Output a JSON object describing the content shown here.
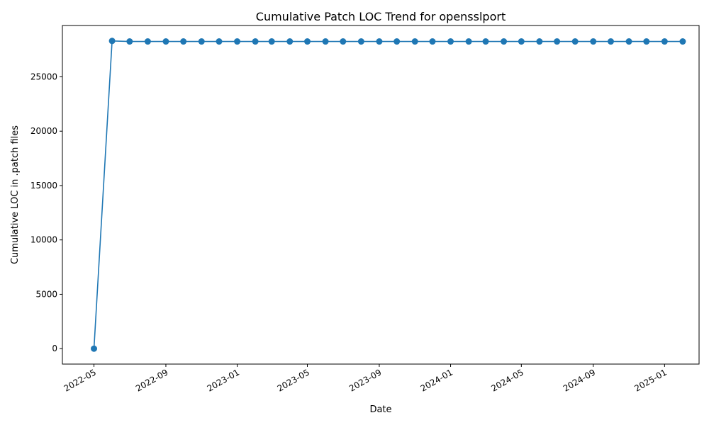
{
  "chart_data": {
    "type": "line",
    "title": "Cumulative Patch LOC Trend for opensslport",
    "xlabel": "Date",
    "ylabel": "Cumulative LOC in .patch files",
    "x": [
      "2022-05-01",
      "2022-06-01",
      "2022-07-01",
      "2022-08-01",
      "2022-09-01",
      "2022-10-01",
      "2022-11-01",
      "2022-12-01",
      "2023-01-01",
      "2023-02-01",
      "2023-03-01",
      "2023-04-01",
      "2023-05-01",
      "2023-06-01",
      "2023-07-01",
      "2023-08-01",
      "2023-09-01",
      "2023-10-01",
      "2023-11-01",
      "2023-12-01",
      "2024-01-01",
      "2024-02-01",
      "2024-03-01",
      "2024-04-01",
      "2024-05-01",
      "2024-06-01",
      "2024-07-01",
      "2024-08-01",
      "2024-09-01",
      "2024-10-01",
      "2024-11-01",
      "2024-12-01",
      "2025-01-01",
      "2025-02-01"
    ],
    "series": [
      {
        "name": "",
        "color": "#1f77b4",
        "values": [
          0,
          28300,
          28250,
          28250,
          28250,
          28250,
          28250,
          28250,
          28250,
          28250,
          28250,
          28250,
          28250,
          28250,
          28250,
          28250,
          28250,
          28250,
          28250,
          28250,
          28250,
          28250,
          28250,
          28250,
          28250,
          28250,
          28250,
          28250,
          28250,
          28250,
          28250,
          28250,
          28250,
          28250
        ]
      }
    ],
    "xlim": [
      "2022-03-08",
      "2025-03-01"
    ],
    "ylim": [
      -1420,
      29720
    ],
    "x_ticks": [
      "2022-05",
      "2022-09",
      "2023-01",
      "2023-05",
      "2023-09",
      "2024-01",
      "2024-05",
      "2024-09",
      "2025-01"
    ],
    "y_ticks": [
      0,
      5000,
      10000,
      15000,
      20000,
      25000
    ],
    "grid": false,
    "legend": "none",
    "marker": "circle"
  }
}
